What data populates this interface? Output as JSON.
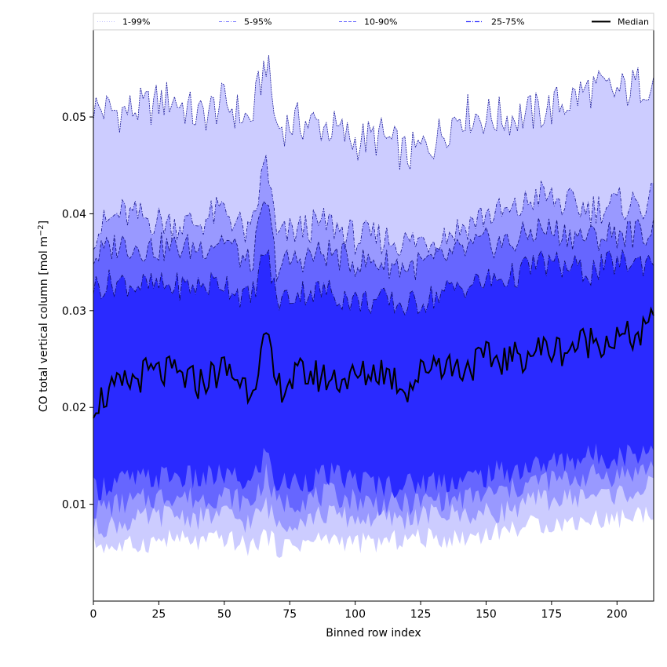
{
  "chart_data": {
    "type": "area",
    "title": "",
    "xlabel": "Binned row index",
    "ylabel_text": "CO total vertical column [mol m",
    "ylabel_sup": "−2",
    "ylabel_close": "]",
    "xlim": [
      0,
      214
    ],
    "ylim": [
      0,
      0.059
    ],
    "x_ticks": [
      0,
      25,
      50,
      75,
      100,
      125,
      150,
      175,
      200
    ],
    "x_tick_labels": [
      "0",
      "25",
      "50",
      "75",
      "100",
      "125",
      "150",
      "175",
      "200"
    ],
    "y_ticks": [
      0.01,
      0.02,
      0.03,
      0.04,
      0.05
    ],
    "y_tick_labels": [
      "0.01",
      "0.02",
      "0.03",
      "0.04",
      "0.05"
    ],
    "grid": false,
    "legend_position": "top",
    "legend": [
      {
        "label": "1-99%",
        "style": "dotted",
        "color": "#c8c8ff"
      },
      {
        "label": "5-95%",
        "style": "dashdot",
        "color": "#8a8aff"
      },
      {
        "label": "10-90%",
        "style": "dashed",
        "color": "#7676ff"
      },
      {
        "label": "25-75%",
        "style": "dashdot",
        "color": "#4040ff"
      },
      {
        "label": "Median",
        "style": "solid",
        "color": "#000000"
      }
    ],
    "band_colors": {
      "p1_99": "#ccccff",
      "p5_95": "#9999ff",
      "p10_90": "#6666ff",
      "p25_75": "#2a2aff",
      "median": "#000000"
    },
    "x_samples": [
      0,
      10,
      20,
      30,
      40,
      50,
      60,
      66,
      70,
      80,
      90,
      100,
      110,
      120,
      130,
      140,
      150,
      160,
      170,
      180,
      190,
      200,
      210,
      214
    ],
    "series": [
      {
        "name": "1-99% upper",
        "values": [
          0.051,
          0.0505,
          0.051,
          0.052,
          0.05,
          0.0515,
          0.0495,
          0.056,
          0.049,
          0.0495,
          0.049,
          0.0475,
          0.048,
          0.046,
          0.0475,
          0.0505,
          0.05,
          0.05,
          0.0505,
          0.0515,
          0.053,
          0.0525,
          0.0535,
          0.054
        ]
      },
      {
        "name": "5-95% upper",
        "values": [
          0.038,
          0.04,
          0.0395,
          0.039,
          0.039,
          0.0405,
          0.0375,
          0.046,
          0.0375,
          0.0385,
          0.039,
          0.0375,
          0.0375,
          0.037,
          0.0375,
          0.0385,
          0.04,
          0.04,
          0.042,
          0.041,
          0.0405,
          0.041,
          0.041,
          0.0415
        ]
      },
      {
        "name": "10-90% upper",
        "values": [
          0.0355,
          0.037,
          0.0365,
          0.0365,
          0.0365,
          0.0375,
          0.0345,
          0.0415,
          0.0345,
          0.0355,
          0.036,
          0.035,
          0.035,
          0.0345,
          0.035,
          0.036,
          0.037,
          0.037,
          0.0385,
          0.038,
          0.0375,
          0.038,
          0.038,
          0.0385
        ]
      },
      {
        "name": "25-75% upper",
        "values": [
          0.0325,
          0.033,
          0.0325,
          0.0325,
          0.0325,
          0.033,
          0.031,
          0.0365,
          0.031,
          0.032,
          0.032,
          0.031,
          0.031,
          0.0305,
          0.0315,
          0.0325,
          0.033,
          0.0335,
          0.035,
          0.0345,
          0.034,
          0.035,
          0.035,
          0.0355
        ]
      },
      {
        "name": "Median",
        "values": [
          0.0205,
          0.022,
          0.0235,
          0.0235,
          0.0225,
          0.024,
          0.022,
          0.027,
          0.022,
          0.0235,
          0.023,
          0.023,
          0.024,
          0.022,
          0.025,
          0.024,
          0.025,
          0.025,
          0.026,
          0.026,
          0.027,
          0.027,
          0.0275,
          0.029
        ]
      },
      {
        "name": "25-75% lower",
        "values": [
          0.0115,
          0.0125,
          0.0125,
          0.013,
          0.0125,
          0.013,
          0.012,
          0.0155,
          0.012,
          0.0125,
          0.013,
          0.0125,
          0.012,
          0.012,
          0.0125,
          0.0125,
          0.013,
          0.0135,
          0.014,
          0.0145,
          0.015,
          0.015,
          0.0155,
          0.016
        ]
      },
      {
        "name": "10-90% lower",
        "values": [
          0.0095,
          0.01,
          0.0105,
          0.011,
          0.0105,
          0.011,
          0.01,
          0.013,
          0.01,
          0.0105,
          0.011,
          0.0105,
          0.01,
          0.01,
          0.0105,
          0.0105,
          0.011,
          0.0115,
          0.0125,
          0.0125,
          0.013,
          0.013,
          0.0135,
          0.014
        ]
      },
      {
        "name": "5-95% lower",
        "values": [
          0.0075,
          0.008,
          0.0085,
          0.009,
          0.0085,
          0.009,
          0.008,
          0.01,
          0.008,
          0.0085,
          0.009,
          0.0085,
          0.0085,
          0.0085,
          0.009,
          0.009,
          0.009,
          0.0095,
          0.0105,
          0.0105,
          0.011,
          0.011,
          0.0115,
          0.012
        ]
      },
      {
        "name": "1-99% lower",
        "values": [
          0.006,
          0.0055,
          0.006,
          0.0065,
          0.006,
          0.0065,
          0.0055,
          0.007,
          0.0055,
          0.006,
          0.0065,
          0.006,
          0.006,
          0.0065,
          0.0065,
          0.0065,
          0.007,
          0.0075,
          0.008,
          0.008,
          0.0085,
          0.0085,
          0.009,
          0.0095
        ]
      }
    ]
  }
}
